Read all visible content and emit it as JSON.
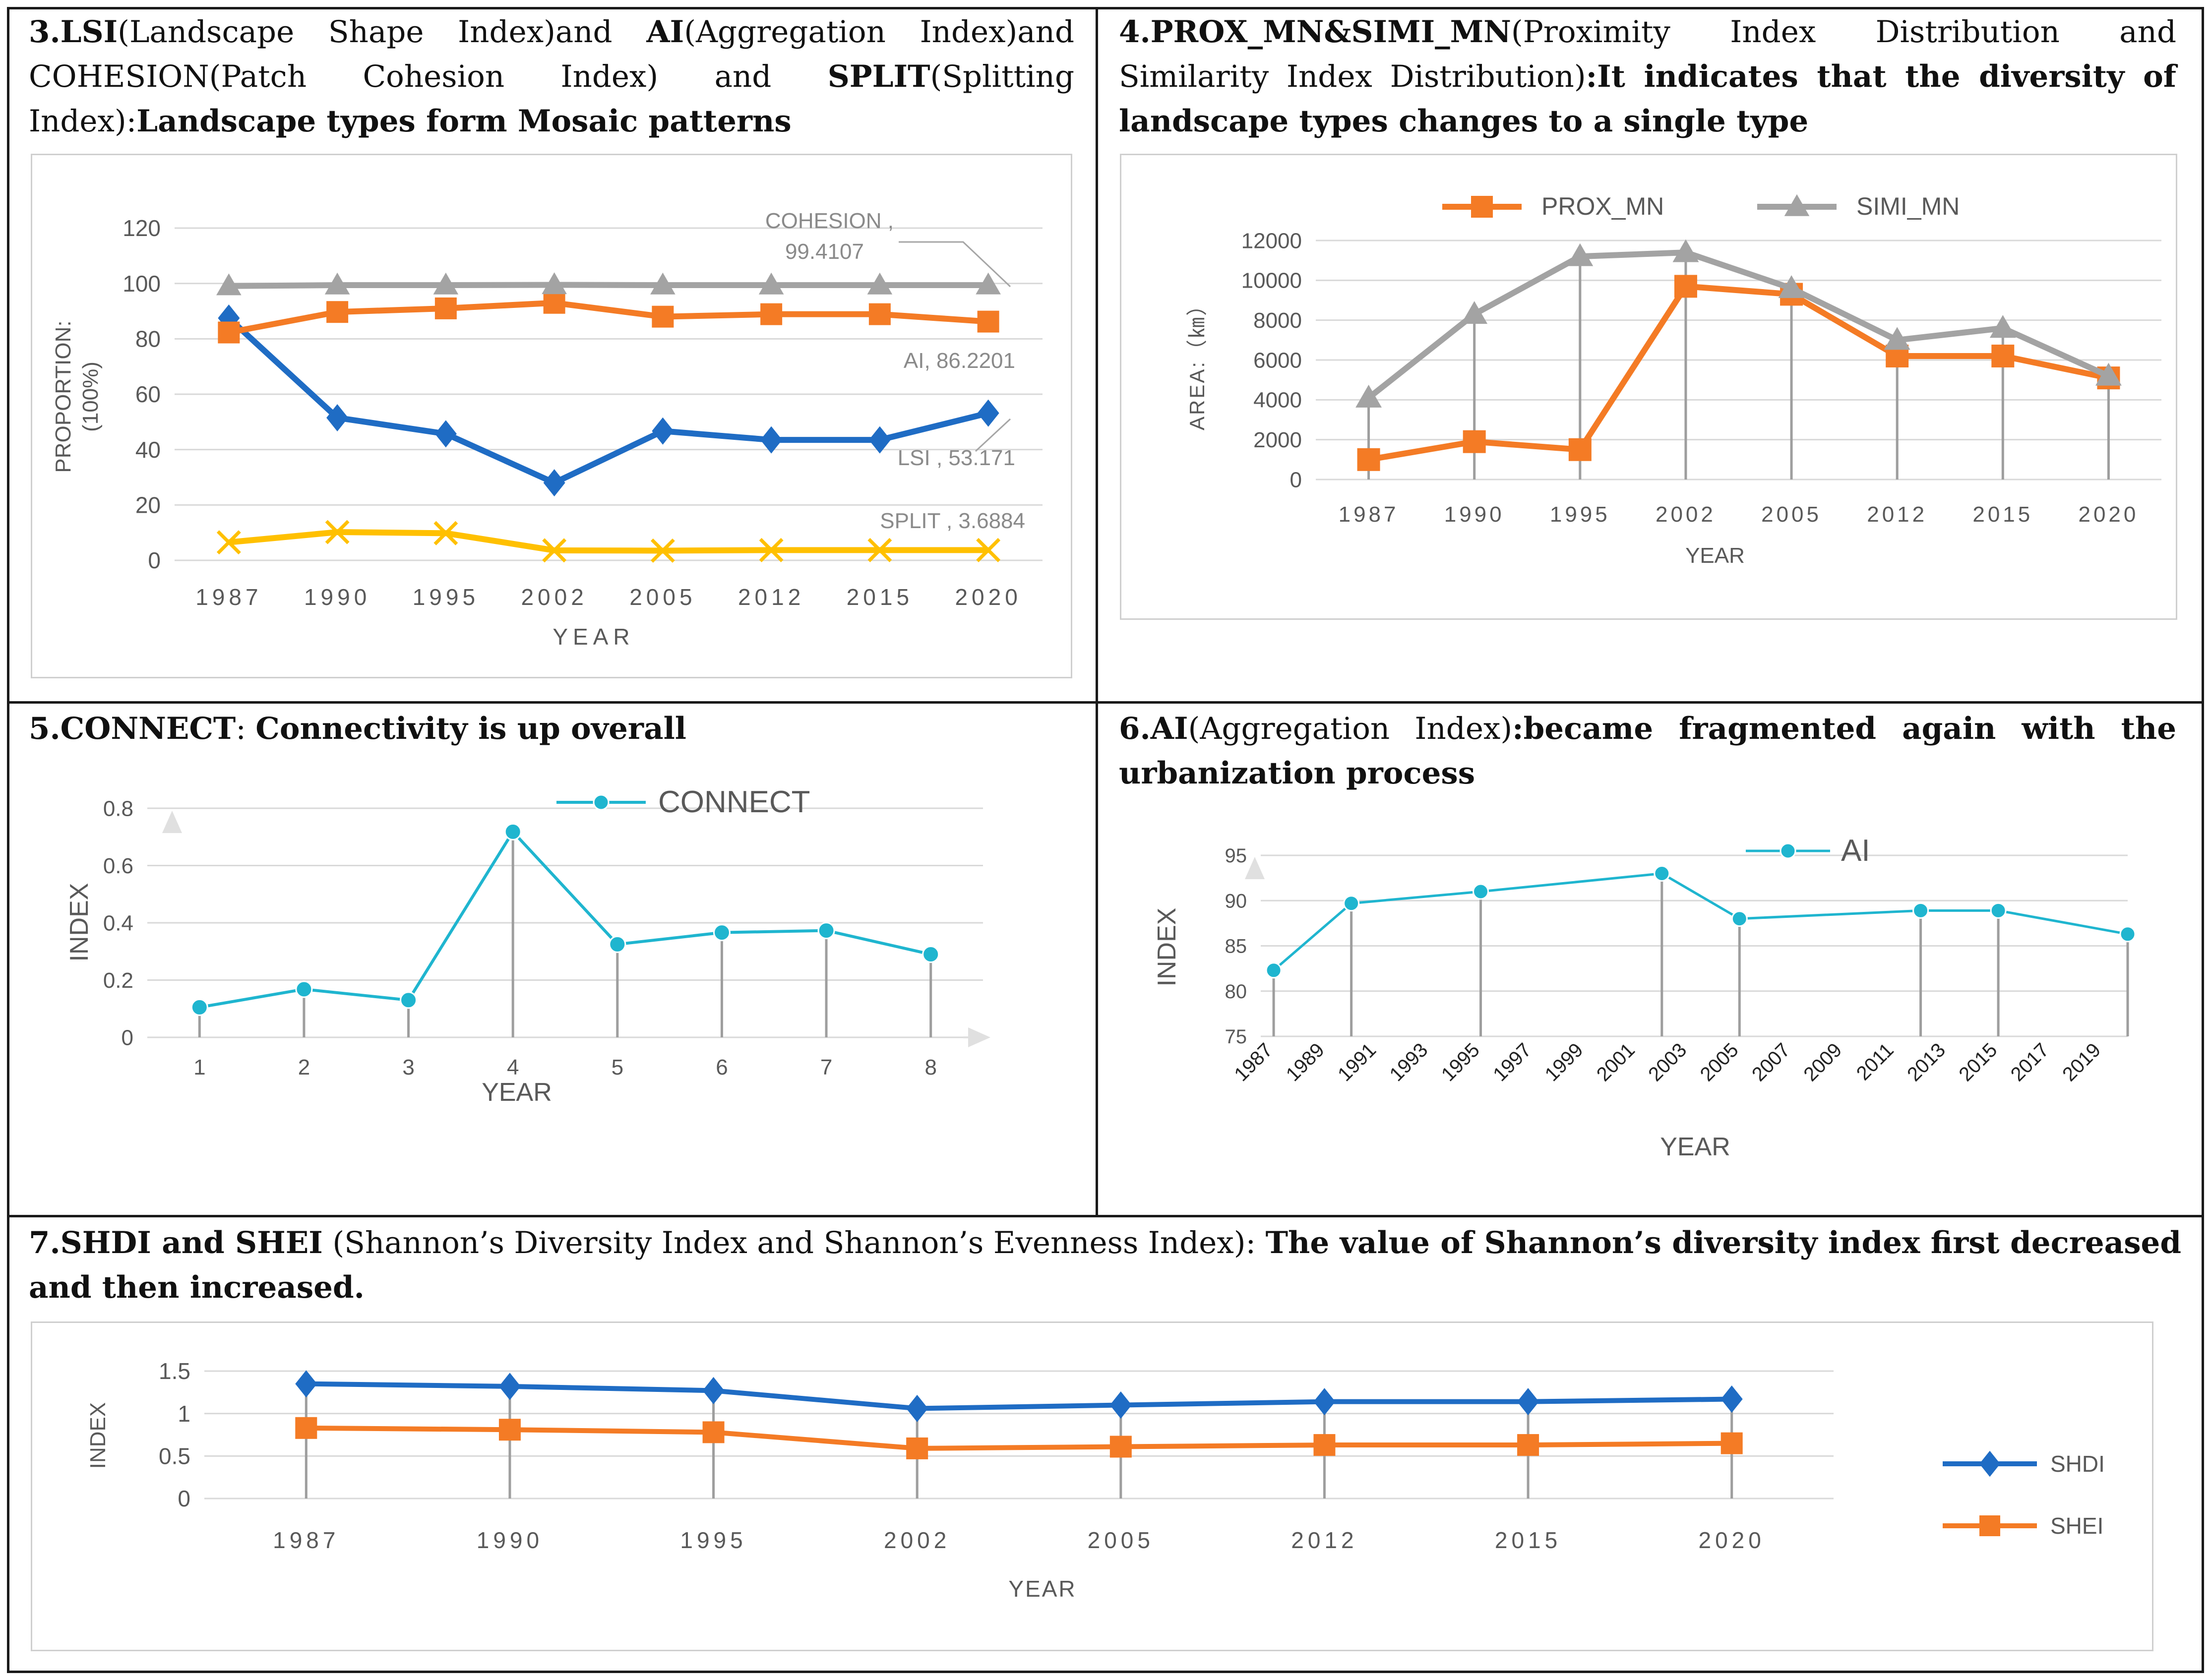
{
  "panels": [
    {
      "key": "p3",
      "title_parts": [
        {
          "b": true,
          "t": "3.LSI"
        },
        {
          "b": false,
          "t": "(Landscape Shape Index)and "
        },
        {
          "b": true,
          "t": "AI"
        },
        {
          "b": false,
          "t": "(Aggregation Index)and COHESION(Patch Cohesion Index) and "
        },
        {
          "b": true,
          "t": "SPLIT"
        },
        {
          "b": false,
          "t": "(Splitting Index):"
        },
        {
          "b": true,
          "t": "Landscape types form Mosaic patterns"
        }
      ]
    },
    {
      "key": "p4",
      "title_parts": [
        {
          "b": true,
          "t": "4.PROX_MN&SIMI_MN"
        },
        {
          "b": false,
          "t": "(Proximity Index Distribution and Similarity Index Distribution)"
        },
        {
          "b": true,
          "t": ":It indicates that the diversity of landscape types changes to a single type"
        }
      ]
    },
    {
      "key": "p5",
      "title_parts": [
        {
          "b": true,
          "t": "5.CONNECT"
        },
        {
          "b": false,
          "t": ": "
        },
        {
          "b": true,
          "t": "Connectivity is up overall"
        }
      ]
    },
    {
      "key": "p6",
      "title_parts": [
        {
          "b": true,
          "t": "6.AI"
        },
        {
          "b": false,
          "t": "(Aggregation Index)"
        },
        {
          "b": true,
          "t": ":became fragmented again with the urbanization process"
        }
      ]
    },
    {
      "key": "p7",
      "title_parts": [
        {
          "b": true,
          "t": "7.SHDI and SHEI"
        },
        {
          "b": false,
          "t": " (Shannon’s Diversity Index and Shannon’s Evenness Index): "
        },
        {
          "b": true,
          "t": "The value of Shannon’s diversity index first decreased and then increased."
        }
      ]
    }
  ],
  "colors": {
    "blue": "#1f6cc4",
    "orange": "#f47b25",
    "gray": "#a3a3a3",
    "yellow": "#ffc000",
    "teal": "#1fb5cf",
    "grid": "#d9d9d9",
    "axis_text": "#595959",
    "drop": "#9e9e9e"
  },
  "chart_data": [
    {
      "id": "chart3",
      "type": "line",
      "categories": [
        "1987",
        "1990",
        "1995",
        "2002",
        "2005",
        "2012",
        "2015",
        "2020"
      ],
      "series": [
        {
          "name": "LSI",
          "values": [
            87.5,
            51.5,
            45.7,
            28.0,
            46.7,
            43.5,
            43.5,
            53.171
          ],
          "color": "blue",
          "marker": "diamond"
        },
        {
          "name": "AI",
          "values": [
            82.3,
            89.7,
            91.0,
            93.0,
            88.0,
            88.9,
            88.9,
            86.2201
          ],
          "color": "orange",
          "marker": "square"
        },
        {
          "name": "COHESION",
          "values": [
            99.1,
            99.4,
            99.4,
            99.5,
            99.4,
            99.4,
            99.4,
            99.4107
          ],
          "color": "gray",
          "marker": "triangle"
        },
        {
          "name": "SPLIT",
          "values": [
            6.5,
            10.2,
            9.8,
            3.6,
            3.5,
            3.7,
            3.7,
            3.6884
          ],
          "color": "yellow",
          "marker": "x"
        }
      ],
      "annotations": [
        {
          "series": "COHESION",
          "line1": "COHESION ,",
          "line2": "99.4107"
        },
        {
          "series": "AI",
          "line1": "AI, 86.2201"
        },
        {
          "series": "LSI",
          "line1": "LSI , 53.171"
        },
        {
          "series": "SPLIT",
          "line1": "SPLIT , 3.6884"
        }
      ],
      "yticks": [
        "0",
        "20",
        "40",
        "60",
        "80",
        "100",
        "120"
      ],
      "ylim": [
        0,
        120
      ],
      "xlabel": "YEAR",
      "ylabel_line1": "PROPORTION:",
      "ylabel_line2": "(100%)",
      "grid": true
    },
    {
      "id": "chart4",
      "type": "line",
      "categories": [
        "1987",
        "1990",
        "1995",
        "2002",
        "2005",
        "2012",
        "2015",
        "2020"
      ],
      "series": [
        {
          "name": "PROX_MN",
          "values": [
            1000,
            1900,
            1500,
            9700,
            9300,
            6200,
            6200,
            5100
          ],
          "color": "orange",
          "marker": "square"
        },
        {
          "name": "SIMI_MN",
          "values": [
            4100,
            8300,
            11200,
            11400,
            9600,
            7000,
            7600,
            5200
          ],
          "color": "gray",
          "marker": "triangle"
        }
      ],
      "yticks": [
        "0",
        "2000",
        "4000",
        "6000",
        "8000",
        "10000",
        "12000"
      ],
      "ylim": [
        0,
        12000
      ],
      "xlabel": "YEAR",
      "ylabel": "AREA:（㎞）",
      "legend": "top",
      "grid": true
    },
    {
      "id": "chart5",
      "type": "line",
      "categories": [
        "1",
        "2",
        "3",
        "4",
        "5",
        "6",
        "7",
        "8"
      ],
      "series": [
        {
          "name": "CONNECT",
          "values": [
            0.105,
            0.168,
            0.13,
            0.718,
            0.325,
            0.366,
            0.373,
            0.29
          ],
          "color": "teal",
          "marker": "circle"
        }
      ],
      "yticks": [
        "0",
        "0.2",
        "0.4",
        "0.6",
        "0.8"
      ],
      "ylim": [
        0,
        0.8
      ],
      "xlabel": "YEAR",
      "ylabel": "INDEX",
      "legend": "top",
      "grid": true
    },
    {
      "id": "chart6",
      "type": "line",
      "x": [
        1987,
        1990,
        1995,
        2002,
        2005,
        2012,
        2015,
        2020
      ],
      "series": [
        {
          "name": "AI",
          "values": [
            82.3,
            89.7,
            91.0,
            93.0,
            88.0,
            88.9,
            88.9,
            86.3
          ],
          "color": "teal",
          "marker": "circle"
        }
      ],
      "xticks": [
        "1987",
        "1989",
        "1991",
        "1993",
        "1995",
        "1997",
        "1999",
        "2001",
        "2003",
        "2005",
        "2007",
        "2009",
        "2011",
        "2013",
        "2015",
        "2017",
        "2019"
      ],
      "xlim": [
        1986.5,
        2020
      ],
      "yticks": [
        "75",
        "80",
        "85",
        "90",
        "95"
      ],
      "ylim": [
        75,
        95
      ],
      "xlabel": "YEAR",
      "ylabel": "INDEX",
      "legend": "top",
      "grid": true
    },
    {
      "id": "chart7",
      "type": "line",
      "categories": [
        "1987",
        "1990",
        "1995",
        "2002",
        "2005",
        "2012",
        "2015",
        "2020"
      ],
      "series": [
        {
          "name": "SHDI",
          "values": [
            1.35,
            1.32,
            1.27,
            1.06,
            1.1,
            1.14,
            1.14,
            1.17
          ],
          "color": "blue",
          "marker": "diamond"
        },
        {
          "name": "SHEI",
          "values": [
            0.83,
            0.81,
            0.78,
            0.59,
            0.61,
            0.63,
            0.63,
            0.65
          ],
          "color": "orange",
          "marker": "square"
        }
      ],
      "yticks": [
        "0",
        "0.5",
        "1",
        "1.5"
      ],
      "ylim": [
        0,
        1.5
      ],
      "xlabel": "YEAR",
      "ylabel": "INDEX",
      "legend": "right",
      "grid": true
    }
  ]
}
